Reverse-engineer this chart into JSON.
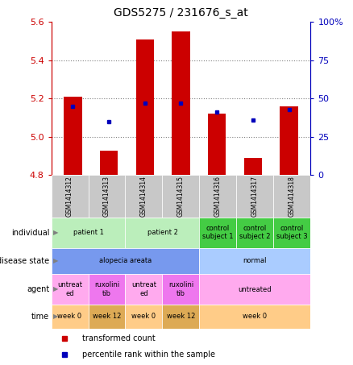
{
  "title": "GDS5275 / 231676_s_at",
  "samples": [
    "GSM1414312",
    "GSM1414313",
    "GSM1414314",
    "GSM1414315",
    "GSM1414316",
    "GSM1414317",
    "GSM1414318"
  ],
  "transformed_counts": [
    5.21,
    4.93,
    5.51,
    5.55,
    5.12,
    4.89,
    5.16
  ],
  "percentile_pcts": [
    45,
    35,
    47,
    47,
    41,
    36,
    43
  ],
  "bar_base": 4.8,
  "ylim_left": [
    4.8,
    5.6
  ],
  "ylim_right": [
    0,
    100
  ],
  "yticks_left": [
    4.8,
    5.0,
    5.2,
    5.4,
    5.6
  ],
  "yticks_right": [
    0,
    25,
    50,
    75,
    100
  ],
  "ytick_right_labels": [
    "0",
    "25",
    "50",
    "75",
    "100%"
  ],
  "left_color": "#cc0000",
  "right_color": "#0000bb",
  "bar_color": "#cc0000",
  "dot_color": "#0000bb",
  "n_samples": 7,
  "background_color": "#ffffff",
  "plot_bg": "#ffffff",
  "rows": {
    "individual": [
      {
        "start": 0,
        "end": 2,
        "color": "#bbeebb",
        "text": "patient 1"
      },
      {
        "start": 2,
        "end": 4,
        "color": "#bbeebb",
        "text": "patient 2"
      },
      {
        "start": 4,
        "end": 5,
        "color": "#44cc44",
        "text": "control\nsubject 1"
      },
      {
        "start": 5,
        "end": 6,
        "color": "#44cc44",
        "text": "control\nsubject 2"
      },
      {
        "start": 6,
        "end": 7,
        "color": "#44cc44",
        "text": "control\nsubject 3"
      }
    ],
    "disease_state": [
      {
        "start": 0,
        "end": 4,
        "color": "#7799ee",
        "text": "alopecia areata"
      },
      {
        "start": 4,
        "end": 7,
        "color": "#aaccff",
        "text": "normal"
      }
    ],
    "agent": [
      {
        "start": 0,
        "end": 1,
        "color": "#ffaaee",
        "text": "untreat\ned"
      },
      {
        "start": 1,
        "end": 2,
        "color": "#ee77ee",
        "text": "ruxolini\ntib"
      },
      {
        "start": 2,
        "end": 3,
        "color": "#ffaaee",
        "text": "untreat\ned"
      },
      {
        "start": 3,
        "end": 4,
        "color": "#ee77ee",
        "text": "ruxolini\ntib"
      },
      {
        "start": 4,
        "end": 7,
        "color": "#ffaaee",
        "text": "untreated"
      }
    ],
    "time": [
      {
        "start": 0,
        "end": 1,
        "color": "#ffcc88",
        "text": "week 0"
      },
      {
        "start": 1,
        "end": 2,
        "color": "#ddaa55",
        "text": "week 12"
      },
      {
        "start": 2,
        "end": 3,
        "color": "#ffcc88",
        "text": "week 0"
      },
      {
        "start": 3,
        "end": 4,
        "color": "#ddaa55",
        "text": "week 12"
      },
      {
        "start": 4,
        "end": 7,
        "color": "#ffcc88",
        "text": "week 0"
      }
    ]
  },
  "row_order": [
    "individual",
    "disease_state",
    "agent",
    "time"
  ],
  "row_label_names": [
    "individual",
    "disease state",
    "agent",
    "time"
  ],
  "sample_bg": "#c8c8c8"
}
